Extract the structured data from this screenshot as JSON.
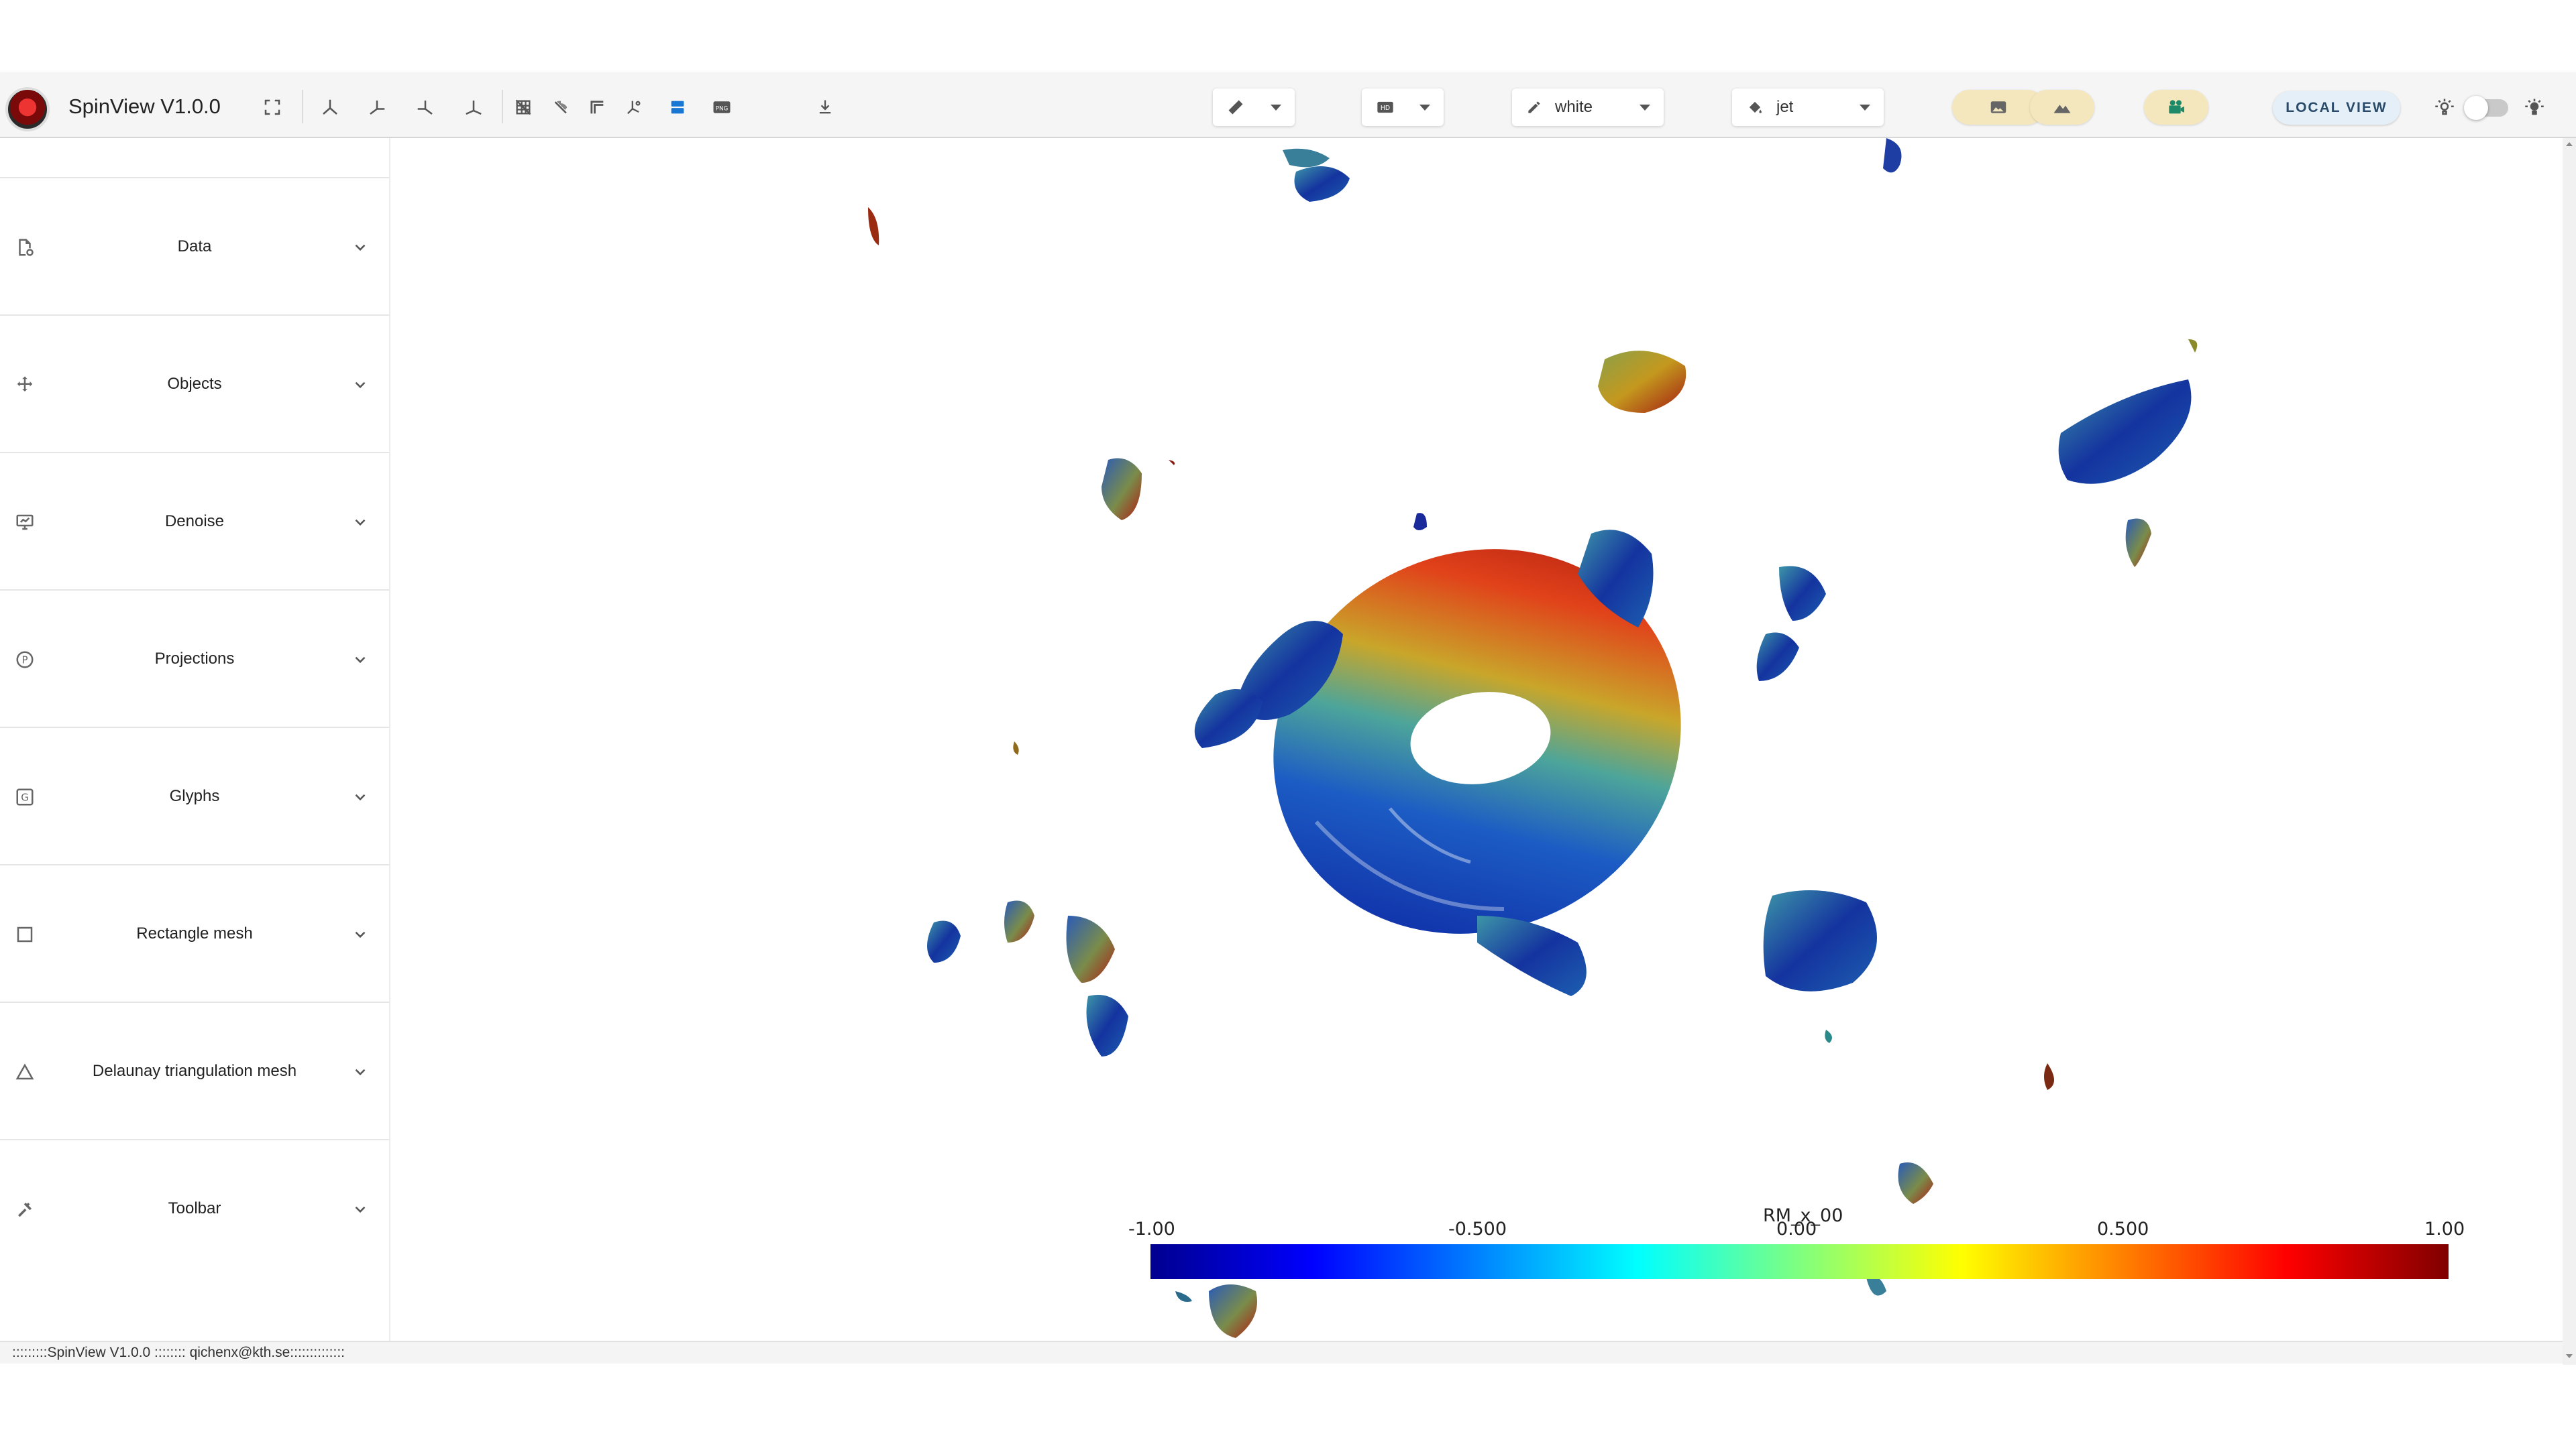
{
  "app": {
    "title": "SpinView V1.0.0"
  },
  "toolbar": {
    "icons": [
      "fullscreen-icon",
      "axis-x-icon",
      "axis-y-icon",
      "axis-z-icon",
      "axis-iso-icon",
      "grid-off-icon",
      "hide-icon",
      "corner-icon",
      "axes-icon",
      "panel-icon",
      "png-icon",
      "download-icon"
    ],
    "ruler_select": "",
    "resolution_select": "",
    "color_select": {
      "value": "white"
    },
    "colormap_select": {
      "value": "jet"
    },
    "local_view_label": "LOCAL VIEW",
    "theme_dark": false
  },
  "sidebar": {
    "panels": [
      {
        "label": "Data",
        "icon": "file-settings-icon"
      },
      {
        "label": "Objects",
        "icon": "move-arrows-icon"
      },
      {
        "label": "Denoise",
        "icon": "monitor-icon"
      },
      {
        "label": "Projections",
        "icon": "p-circle-icon"
      },
      {
        "label": "Glyphs",
        "icon": "g-square-icon"
      },
      {
        "label": "Rectangle mesh",
        "icon": "square-outline-icon"
      },
      {
        "label": "Delaunay triangulation mesh",
        "icon": "triangle-outline-icon"
      },
      {
        "label": "Toolbar",
        "icon": "tools-icon"
      }
    ]
  },
  "viewport": {
    "colorbar": {
      "title": "RM_x_00",
      "colormap": "jet",
      "ticks": [
        "-1.00",
        "-0.500",
        "0.00",
        "0.500",
        "1.00"
      ],
      "min": -1.0,
      "max": 1.0
    }
  },
  "footer": {
    "text": ":::::::::SpinView V1.0.0 :::::::: qichenx@kth.se::::::::::::::"
  }
}
